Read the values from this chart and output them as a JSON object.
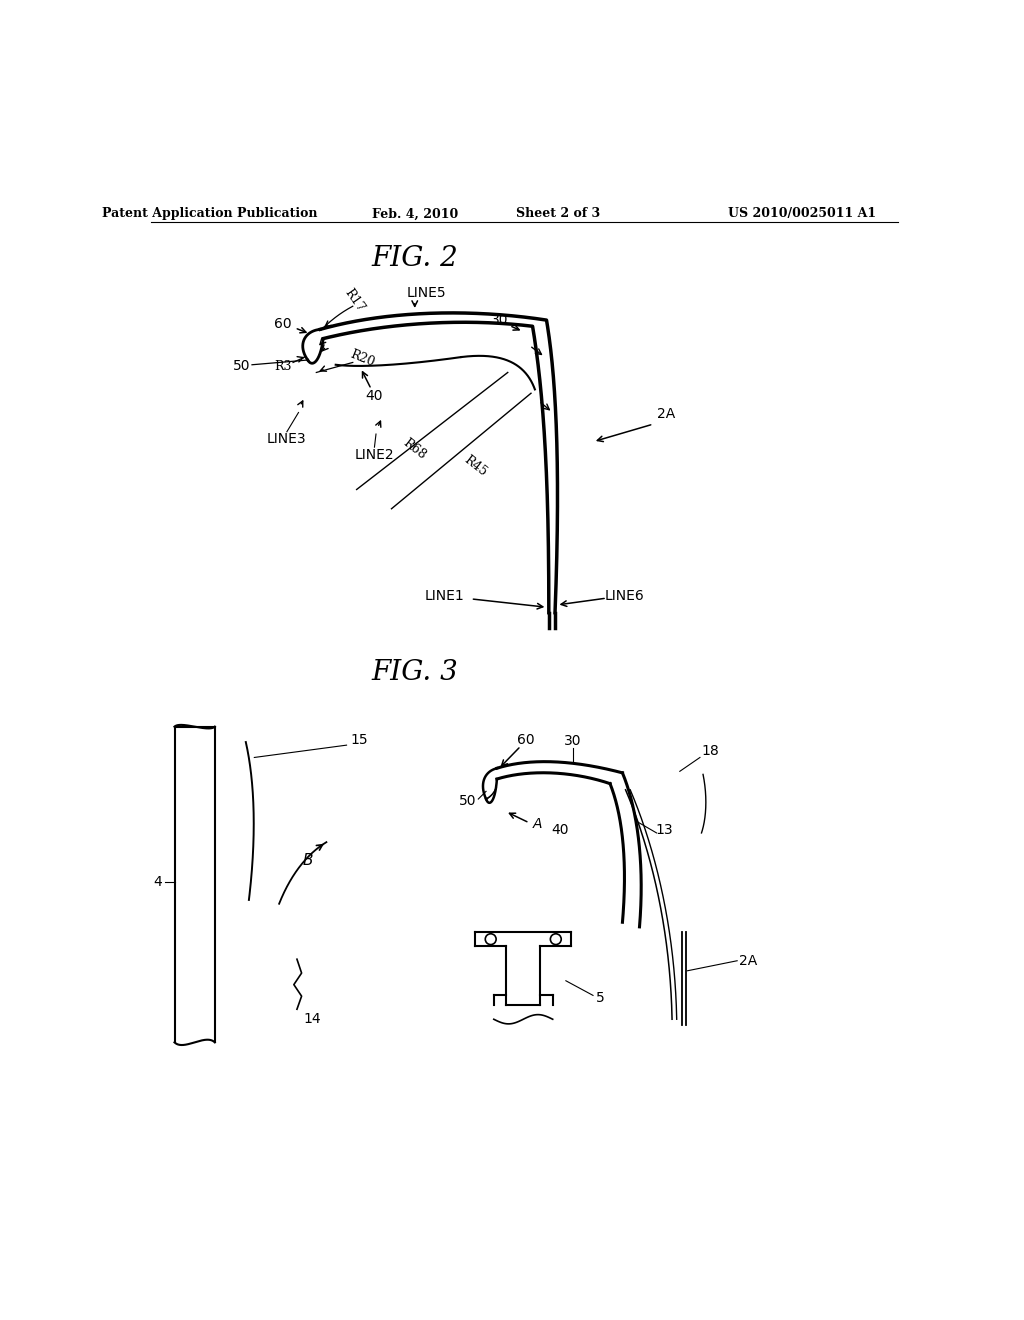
{
  "bg_color": "#ffffff",
  "header_text": "Patent Application Publication",
  "header_date": "Feb. 4, 2010",
  "header_sheet": "Sheet 2 of 3",
  "header_patent": "US 2010/0025011 A1",
  "fig2_title": "FIG. 2",
  "fig3_title": "FIG. 3"
}
